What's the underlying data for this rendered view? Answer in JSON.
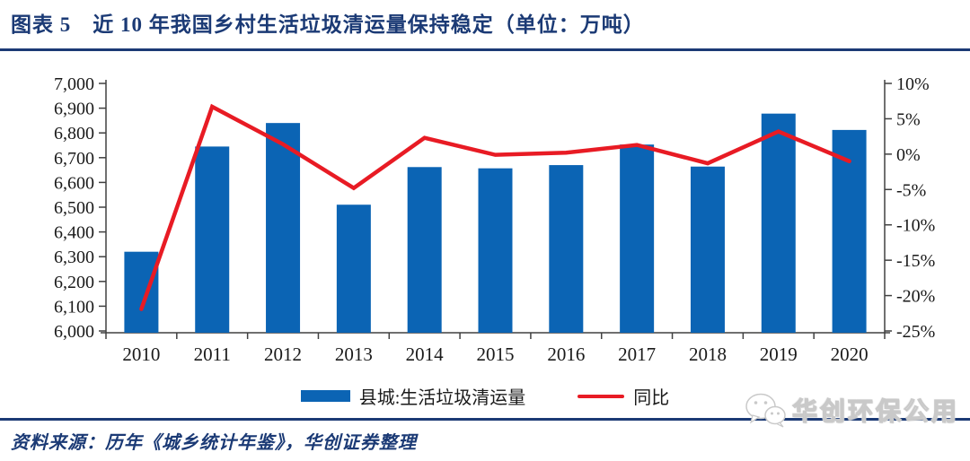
{
  "header": {
    "title": "图表 5　近 10 年我国乡村生活垃圾清运量保持稳定（单位：万吨）"
  },
  "chart_data": {
    "type": "bar",
    "title": "近 10 年我国乡村生活垃圾清运量保持稳定",
    "unit": "万吨",
    "categories": [
      "2010",
      "2011",
      "2012",
      "2013",
      "2014",
      "2015",
      "2016",
      "2017",
      "2018",
      "2019",
      "2020"
    ],
    "series": [
      {
        "name": "县城:生活垃圾清运量",
        "type": "bar",
        "axis": "left",
        "values": [
          6320,
          6745,
          6840,
          6510,
          6662,
          6657,
          6670,
          6753,
          6664,
          6878,
          6812
        ]
      },
      {
        "name": "同比",
        "type": "line",
        "axis": "right",
        "values": [
          -21.9,
          6.7,
          1.4,
          -4.8,
          2.3,
          -0.1,
          0.2,
          1.3,
          -1.3,
          3.2,
          -1.0
        ]
      }
    ],
    "left_axis": {
      "min": 6000,
      "max": 7000,
      "step": 100,
      "tick_labels": [
        "7,000",
        "6,900",
        "6,800",
        "6,700",
        "6,600",
        "6,500",
        "6,400",
        "6,300",
        "6,200",
        "6,100",
        "6,000"
      ],
      "tick_values": [
        7000,
        6900,
        6800,
        6700,
        6600,
        6500,
        6400,
        6300,
        6200,
        6100,
        6000
      ]
    },
    "right_axis": {
      "min": -25,
      "max": 10,
      "step": 5,
      "tick_labels": [
        "10%",
        "5%",
        "0%",
        "-5%",
        "-10%",
        "-15%",
        "-20%",
        "-25%"
      ],
      "tick_values": [
        10,
        5,
        0,
        -5,
        -10,
        -15,
        -20,
        -25
      ]
    },
    "grid": false,
    "legend_position": "bottom"
  },
  "legend": {
    "bar_label": "县城:生活垃圾清运量",
    "line_label": "同比"
  },
  "footer": {
    "source": "资料来源：历年《城乡统计年鉴》，华创证券整理",
    "watermark": "华创环保公用"
  },
  "colors": {
    "navy": "#1B3A75",
    "bar_blue": "#0B64B4",
    "line_red": "#E81B24",
    "axis_gray": "#404040",
    "label_black": "#1a1a1a"
  }
}
